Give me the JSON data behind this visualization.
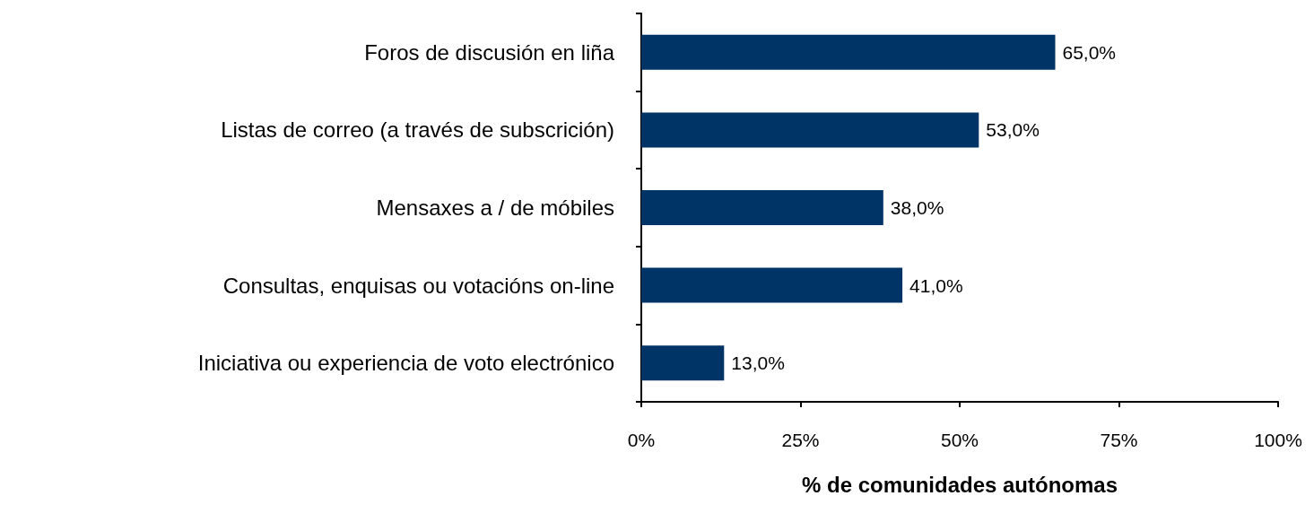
{
  "chart_data": {
    "type": "bar",
    "orientation": "horizontal",
    "xlabel": "% de comunidades autónomas",
    "categories": [
      "Foros de discusión en liña",
      "Listas de correo (a través de subscrición)",
      "Mensaxes a / de móbiles",
      "Consultas, enquisas ou votacións on-line",
      "Iniciativa ou experiencia de voto electrónico"
    ],
    "values": [
      65,
      53,
      38,
      41,
      13
    ],
    "value_labels": [
      "65,0%",
      "53,0%",
      "38,0%",
      "41,0%",
      "13,0%"
    ],
    "color": "#003366",
    "xlim": [
      0,
      100
    ],
    "xticks": [
      {
        "value": 0,
        "label": "0%"
      },
      {
        "value": 25,
        "label": "25%"
      },
      {
        "value": 50,
        "label": "50%"
      },
      {
        "value": 75,
        "label": "75%"
      },
      {
        "value": 100,
        "label": "100%"
      }
    ],
    "grid": false
  }
}
